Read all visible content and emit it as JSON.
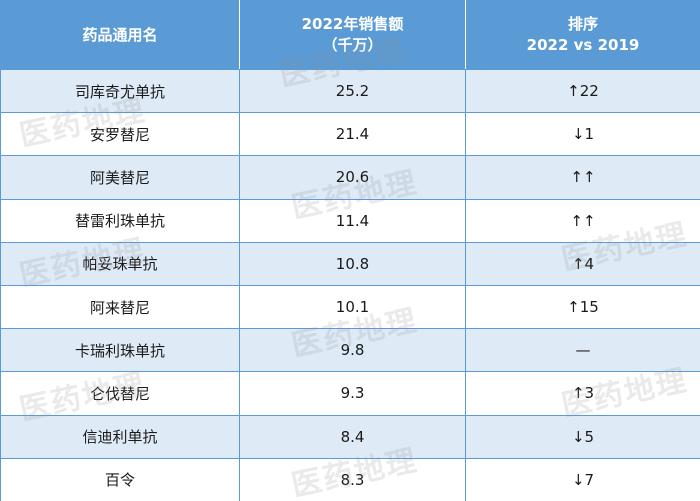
{
  "table": {
    "headers": {
      "name": "药品通用名",
      "sales_line1": "2022年销售额",
      "sales_line2": "（千万）",
      "rank_line1": "排序",
      "rank_line2": "2022 vs 2019"
    },
    "rows": [
      {
        "name": "司库奇尤单抗",
        "sales": "25.2",
        "rank": "↑22"
      },
      {
        "name": "安罗替尼",
        "sales": "21.4",
        "rank": "↓1"
      },
      {
        "name": "阿美替尼",
        "sales": "20.6",
        "rank": "↑↑"
      },
      {
        "name": "替雷利珠单抗",
        "sales": "11.4",
        "rank": "↑↑"
      },
      {
        "name": "帕妥珠单抗",
        "sales": "10.8",
        "rank": "↑4"
      },
      {
        "name": "阿来替尼",
        "sales": "10.1",
        "rank": "↑15"
      },
      {
        "name": "卡瑞利珠单抗",
        "sales": "9.8",
        "rank": "—"
      },
      {
        "name": "仑伐替尼",
        "sales": "9.3",
        "rank": "↑3"
      },
      {
        "name": "信迪利单抗",
        "sales": "8.4",
        "rank": "↓5"
      },
      {
        "name": "百令",
        "sales": "8.3",
        "rank": "↓7"
      }
    ]
  },
  "watermark": {
    "text": "医药地理"
  }
}
